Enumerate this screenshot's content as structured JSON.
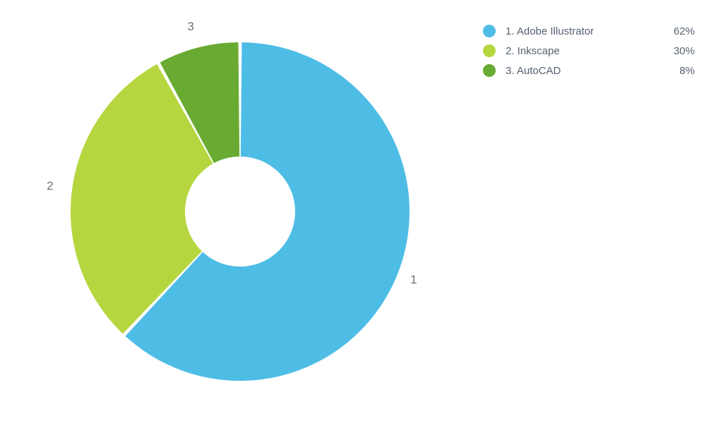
{
  "chart": {
    "type": "donut",
    "outer_radius": 240,
    "inner_radius": 78,
    "start_angle_deg": -90,
    "gap_deg": 1.2,
    "background_color": "#ffffff",
    "label_color": "#6a737d",
    "label_fontsize": 17,
    "label_offset": 28,
    "slices": [
      {
        "index": 1,
        "name": "Adobe Illustrator",
        "value": 62,
        "color": "#4ebde6"
      },
      {
        "index": 2,
        "name": "Inkscape",
        "value": 30,
        "color": "#b6d63f"
      },
      {
        "index": 3,
        "name": "AutoCAD",
        "value": 8,
        "color": "#69aa32"
      }
    ]
  },
  "legend": {
    "text_color": "#566270",
    "fontsize": 15,
    "pct_suffix": "%"
  }
}
